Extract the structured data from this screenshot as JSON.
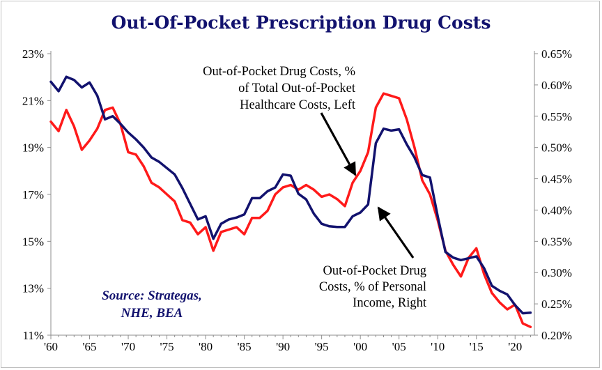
{
  "chart_data": {
    "type": "line",
    "title": "Out-Of-Pocket Prescription Drug Costs",
    "source_note": [
      "Source: Strategas,",
      "NHE, BEA"
    ],
    "annotations": [
      {
        "series": "red",
        "lines": [
          "Out-of-Pocket Drug Costs, %",
          "of Total Out-of-Pocket",
          "Healthcare Costs, Left"
        ]
      },
      {
        "series": "blue",
        "lines": [
          "Out-of-Pocket Drug",
          "Costs, % of Personal",
          "Income, Right"
        ]
      }
    ],
    "x_ticks": [
      1960,
      1965,
      1970,
      1975,
      1980,
      1985,
      1990,
      1995,
      2000,
      2005,
      2010,
      2015,
      2020
    ],
    "x_tick_labels": [
      "'60",
      "'65",
      "'70",
      "'75",
      "'80",
      "'85",
      "'90",
      "'95",
      "'00",
      "'05",
      "'10",
      "'15",
      "'20"
    ],
    "xlim": [
      1960,
      2022.5
    ],
    "y_left": {
      "lim": [
        11,
        23
      ],
      "ticks": [
        11,
        13,
        15,
        17,
        19,
        21,
        23
      ],
      "tick_labels": [
        "11%",
        "13%",
        "15%",
        "17%",
        "19%",
        "21%",
        "23%"
      ]
    },
    "y_right": {
      "lim": [
        0.2,
        0.65
      ],
      "ticks": [
        0.2,
        0.25,
        0.3,
        0.35,
        0.4,
        0.45,
        0.5,
        0.55,
        0.6,
        0.65
      ],
      "tick_labels": [
        "0.20%",
        "0.25%",
        "0.30%",
        "0.35%",
        "0.40%",
        "0.45%",
        "0.50%",
        "0.55%",
        "0.60%",
        "0.65%"
      ]
    },
    "series": [
      {
        "axis": "left",
        "color": "#ff1a1a",
        "x": [
          1960,
          1961,
          1962,
          1963,
          1964,
          1965,
          1966,
          1967,
          1968,
          1969,
          1970,
          1971,
          1972,
          1973,
          1974,
          1975,
          1976,
          1977,
          1978,
          1979,
          1980,
          1981,
          1982,
          1983,
          1984,
          1985,
          1986,
          1987,
          1988,
          1989,
          1990,
          1991,
          1992,
          1993,
          1994,
          1995,
          1996,
          1997,
          1998,
          1999,
          2000,
          2001,
          2002,
          2003,
          2004,
          2005,
          2006,
          2007,
          2008,
          2009,
          2010,
          2011,
          2012,
          2013,
          2014,
          2015,
          2016,
          2017,
          2018,
          2019,
          2020,
          2021,
          2022
        ],
        "values": [
          20.1,
          19.7,
          20.6,
          19.9,
          18.9,
          19.3,
          19.8,
          20.6,
          20.7,
          20.0,
          18.8,
          18.7,
          18.2,
          17.5,
          17.3,
          17.0,
          16.7,
          15.9,
          15.8,
          15.3,
          15.6,
          14.6,
          15.4,
          15.5,
          15.6,
          15.3,
          16.0,
          16.0,
          16.3,
          17.0,
          17.3,
          17.4,
          17.2,
          17.4,
          17.2,
          16.9,
          17.0,
          16.8,
          16.5,
          17.5,
          18.0,
          18.8,
          20.7,
          21.3,
          21.2,
          21.1,
          20.2,
          19.0,
          17.6,
          17.0,
          15.9,
          14.6,
          14.0,
          13.5,
          14.3,
          14.7,
          13.6,
          12.8,
          12.4,
          12.1,
          12.3,
          11.5,
          11.35
        ]
      },
      {
        "axis": "right",
        "color": "#12126e",
        "x": [
          1960,
          1961,
          1962,
          1963,
          1964,
          1965,
          1966,
          1967,
          1968,
          1969,
          1970,
          1971,
          1972,
          1973,
          1974,
          1975,
          1976,
          1977,
          1978,
          1979,
          1980,
          1981,
          1982,
          1983,
          1984,
          1985,
          1986,
          1987,
          1988,
          1989,
          1990,
          1991,
          1992,
          1993,
          1994,
          1995,
          1996,
          1997,
          1998,
          1999,
          2000,
          2001,
          2002,
          2003,
          2004,
          2005,
          2006,
          2007,
          2008,
          2009,
          2010,
          2011,
          2012,
          2013,
          2014,
          2015,
          2016,
          2017,
          2018,
          2019,
          2020,
          2021,
          2022
        ],
        "values": [
          0.605,
          0.59,
          0.613,
          0.608,
          0.596,
          0.604,
          0.583,
          0.545,
          0.55,
          0.538,
          0.524,
          0.513,
          0.5,
          0.484,
          0.477,
          0.467,
          0.457,
          0.435,
          0.41,
          0.385,
          0.39,
          0.354,
          0.378,
          0.385,
          0.388,
          0.393,
          0.419,
          0.419,
          0.43,
          0.436,
          0.457,
          0.455,
          0.426,
          0.417,
          0.394,
          0.378,
          0.374,
          0.373,
          0.373,
          0.39,
          0.396,
          0.409,
          0.507,
          0.53,
          0.527,
          0.529,
          0.505,
          0.484,
          0.456,
          0.452,
          0.39,
          0.333,
          0.324,
          0.32,
          0.323,
          0.326,
          0.307,
          0.279,
          0.271,
          0.265,
          0.248,
          0.235,
          0.236
        ]
      }
    ]
  }
}
